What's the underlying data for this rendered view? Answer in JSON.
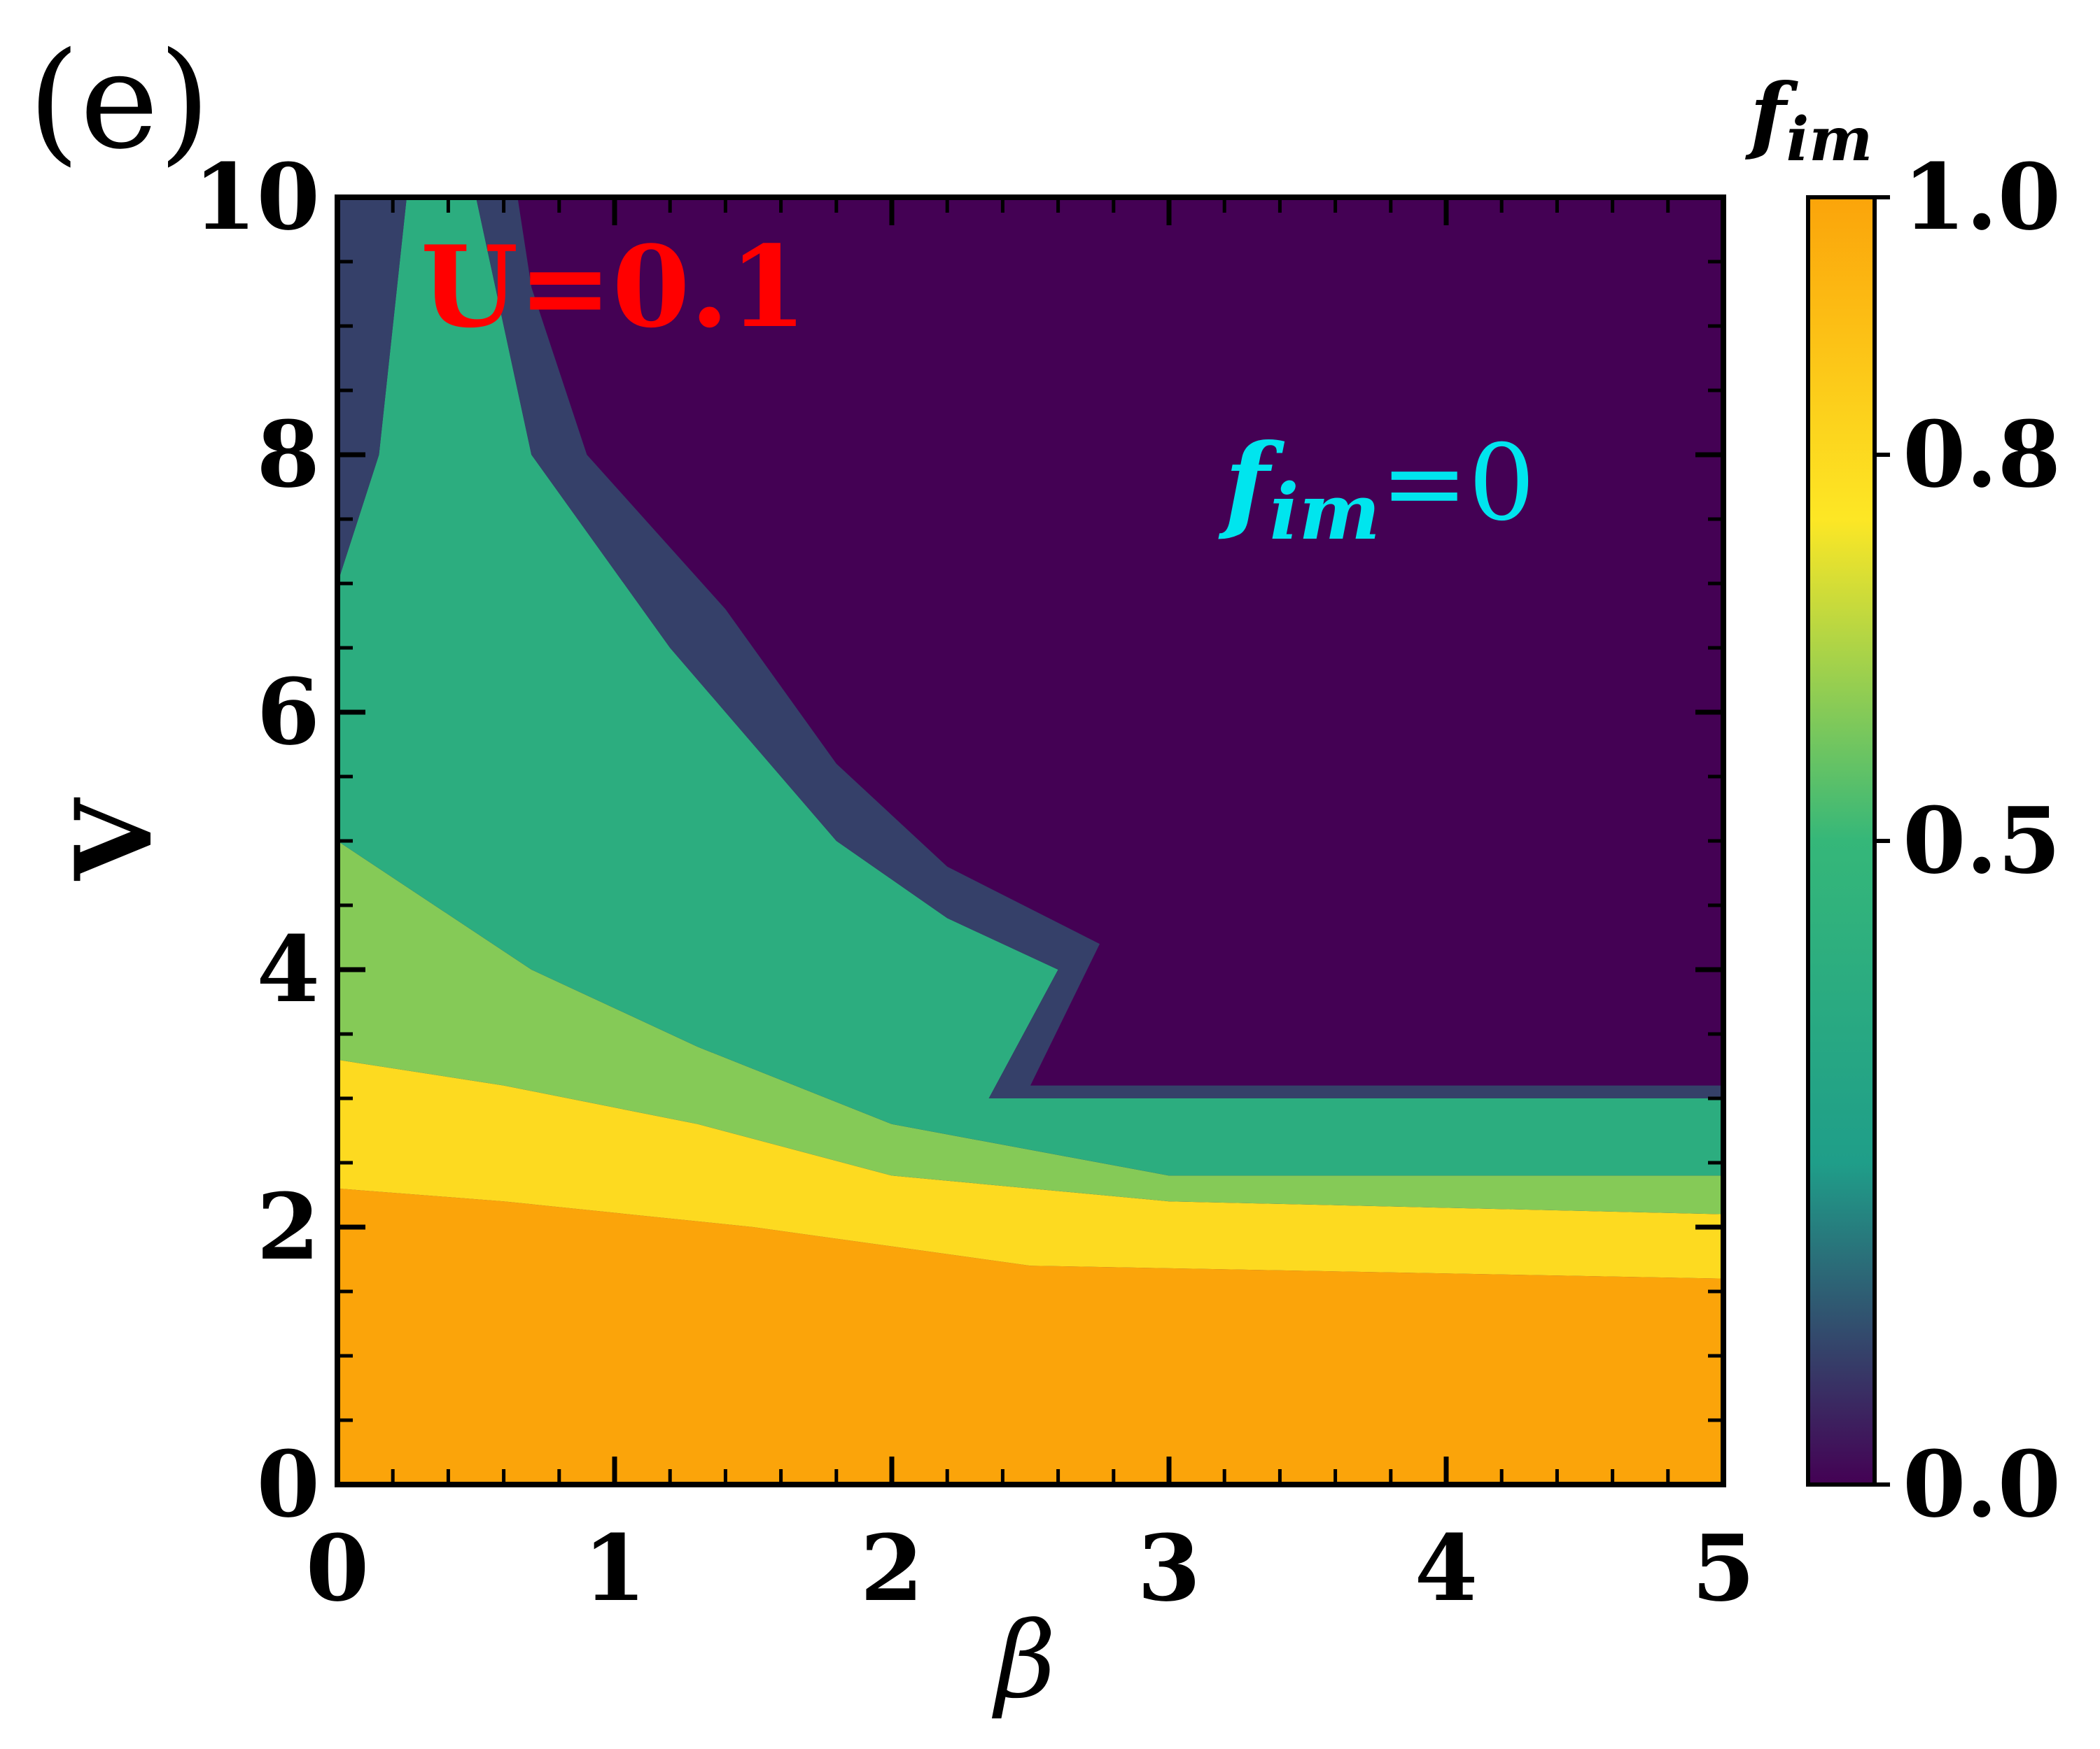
{
  "panel_label": "(e)",
  "colorbar_title": {
    "base": "f",
    "sub": "im"
  },
  "chart_data": {
    "type": "heatmap",
    "title": "",
    "xlabel": "β",
    "ylabel": "V",
    "xlim": [
      0,
      5
    ],
    "ylim": [
      0,
      10
    ],
    "x_ticks": [
      "0",
      "1",
      "2",
      "3",
      "4",
      "5"
    ],
    "y_ticks": [
      "0",
      "2",
      "4",
      "6",
      "8",
      "10"
    ],
    "colorbar": {
      "label": "f_im",
      "range": [
        0,
        1
      ],
      "ticks": [
        "0.0",
        "0.5",
        "0.8",
        "1.0"
      ],
      "colormap": [
        "#440154",
        "#1f9e89",
        "#35b779",
        "#fde725",
        "#fba40a"
      ]
    },
    "annotations": [
      {
        "text": "U=0.1",
        "color": "#ff0000",
        "x": 0.3,
        "y": 9.0
      },
      {
        "text_base": "f",
        "text_sub": "im",
        "text_tail": "=0",
        "color": "#00e5ee",
        "x": 3.2,
        "y": 7.5
      }
    ],
    "regions": [
      {
        "name": "orange plateau",
        "value": 1.0,
        "polygon": [
          [
            0,
            0
          ],
          [
            5,
            0
          ],
          [
            5,
            1.6
          ],
          [
            2.5,
            1.7
          ],
          [
            1.5,
            2.0
          ],
          [
            0.6,
            2.2
          ],
          [
            0,
            2.3
          ]
        ]
      },
      {
        "name": "yellow band",
        "value": 0.8,
        "polygon": [
          [
            0,
            2.3
          ],
          [
            0.6,
            2.2
          ],
          [
            1.5,
            2.0
          ],
          [
            2.5,
            1.7
          ],
          [
            5,
            1.6
          ],
          [
            5,
            2.1
          ],
          [
            3,
            2.2
          ],
          [
            2,
            2.4
          ],
          [
            1.3,
            2.8
          ],
          [
            0.6,
            3.1
          ],
          [
            0,
            3.3
          ]
        ]
      },
      {
        "name": "light green band",
        "value": 0.6,
        "polygon": [
          [
            0,
            3.3
          ],
          [
            0.6,
            3.1
          ],
          [
            1.3,
            2.8
          ],
          [
            2,
            2.4
          ],
          [
            3,
            2.2
          ],
          [
            5,
            2.1
          ],
          [
            5,
            2.4
          ],
          [
            3,
            2.4
          ],
          [
            2,
            2.8
          ],
          [
            1.3,
            3.4
          ],
          [
            0.7,
            4.0
          ],
          [
            0,
            5.0
          ]
        ]
      },
      {
        "name": "green region",
        "value": 0.4,
        "polygon": [
          [
            0,
            5.0
          ],
          [
            0.7,
            4.0
          ],
          [
            1.3,
            3.4
          ],
          [
            2,
            2.8
          ],
          [
            3,
            2.4
          ],
          [
            5,
            2.4
          ],
          [
            5,
            3.0
          ],
          [
            2.35,
            3.0
          ],
          [
            2.45,
            3.4
          ],
          [
            2.6,
            4.0
          ],
          [
            2.2,
            4.4
          ],
          [
            1.8,
            5.0
          ],
          [
            1.2,
            6.5
          ],
          [
            0.7,
            8.0
          ],
          [
            0.5,
            10
          ],
          [
            0.25,
            10
          ],
          [
            0.15,
            8
          ],
          [
            0,
            7
          ]
        ]
      },
      {
        "name": "blue-grey fringe",
        "value": 0.1,
        "polygon": [
          [
            0.5,
            10
          ],
          [
            0.7,
            8.0
          ],
          [
            1.2,
            6.5
          ],
          [
            1.8,
            5.0
          ],
          [
            2.2,
            4.4
          ],
          [
            2.6,
            4.0
          ],
          [
            2.45,
            3.4
          ],
          [
            2.35,
            3.0
          ],
          [
            5,
            3.0
          ],
          [
            5,
            3.1
          ],
          [
            2.5,
            3.1
          ],
          [
            2.75,
            4.2
          ],
          [
            2.2,
            4.8
          ],
          [
            1.8,
            5.6
          ],
          [
            1.4,
            6.8
          ],
          [
            0.9,
            8.0
          ],
          [
            0.7,
            9.3
          ],
          [
            0.65,
            10
          ]
        ]
      },
      {
        "name": "left fringe",
        "value": 0.1,
        "polygon": [
          [
            0,
            7
          ],
          [
            0.15,
            8
          ],
          [
            0.25,
            10
          ],
          [
            0,
            10
          ]
        ]
      }
    ]
  }
}
